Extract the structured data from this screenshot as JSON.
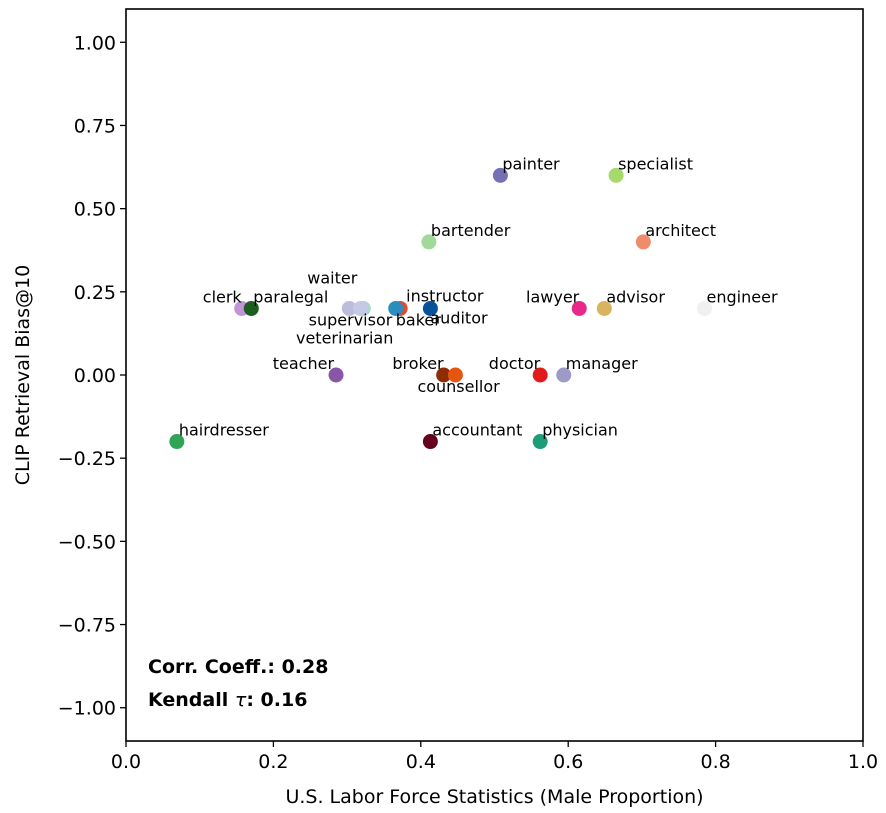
{
  "chart_data": {
    "type": "scatter",
    "title": "",
    "xlabel": "U.S. Labor Force Statistics (Male Proportion)",
    "ylabel": "CLIP Retrieval Bias@10",
    "xlim": [
      0.0,
      1.0
    ],
    "ylim": [
      -1.1,
      1.1
    ],
    "grid": false,
    "x_ticks": [
      "0.0",
      "0.2",
      "0.4",
      "0.6",
      "0.8",
      "1.0"
    ],
    "y_ticks": [
      "−1.00",
      "−0.75",
      "−0.50",
      "−0.25",
      "0.00",
      "0.25",
      "0.50",
      "0.75",
      "1.00"
    ],
    "points": [
      {
        "label": "painter",
        "x": 0.508,
        "y": 0.6,
        "color": "#7570b3"
      },
      {
        "label": "specialist",
        "x": 0.665,
        "y": 0.6,
        "color": "#a6d96a"
      },
      {
        "label": "bartender",
        "x": 0.411,
        "y": 0.4,
        "color": "#a1d99b"
      },
      {
        "label": "architect",
        "x": 0.702,
        "y": 0.4,
        "color": "#f08c6c"
      },
      {
        "label": "clerk",
        "x": 0.157,
        "y": 0.2,
        "color": "#c394d6"
      },
      {
        "label": "paralegal",
        "x": 0.17,
        "y": 0.2,
        "color": "#1b5e20"
      },
      {
        "label": "waiter",
        "x": 0.303,
        "y": 0.2,
        "color": "#bcbddc"
      },
      {
        "label": "supervisor",
        "x": 0.322,
        "y": 0.2,
        "color": "#a8d8d0"
      },
      {
        "label": "veterinarian",
        "x": 0.318,
        "y": 0.2,
        "color": "#c6c9e6"
      },
      {
        "label": "instructor",
        "x": 0.372,
        "y": 0.2,
        "color": "#e34a33"
      },
      {
        "label": "baker",
        "x": 0.366,
        "y": 0.2,
        "color": "#2b8cbe"
      },
      {
        "label": "auditor",
        "x": 0.413,
        "y": 0.2,
        "color": "#08519c"
      },
      {
        "label": "lawyer",
        "x": 0.615,
        "y": 0.2,
        "color": "#e7298a"
      },
      {
        "label": "advisor",
        "x": 0.649,
        "y": 0.2,
        "color": "#d9b35f"
      },
      {
        "label": "engineer",
        "x": 0.785,
        "y": 0.2,
        "color": "#f0f0f0"
      },
      {
        "label": "teacher",
        "x": 0.285,
        "y": 0.0,
        "color": "#8856a7"
      },
      {
        "label": "broker",
        "x": 0.431,
        "y": 0.0,
        "color": "#8c2d04"
      },
      {
        "label": "counsellor",
        "x": 0.447,
        "y": 0.0,
        "color": "#e6550d"
      },
      {
        "label": "doctor",
        "x": 0.562,
        "y": 0.0,
        "color": "#e31a1c"
      },
      {
        "label": "manager",
        "x": 0.594,
        "y": 0.0,
        "color": "#9e9ac8"
      },
      {
        "label": "hairdresser",
        "x": 0.069,
        "y": -0.2,
        "color": "#31a354"
      },
      {
        "label": "accountant",
        "x": 0.413,
        "y": -0.2,
        "color": "#67001f"
      },
      {
        "label": "physician",
        "x": 0.562,
        "y": -0.2,
        "color": "#1b9e77"
      }
    ],
    "annotations": {
      "corr_label": "Corr. Coeff.: 0.28",
      "kendall_label": "Kendall ",
      "kendall_symbol": "τ",
      "kendall_value": ": 0.16"
    }
  }
}
